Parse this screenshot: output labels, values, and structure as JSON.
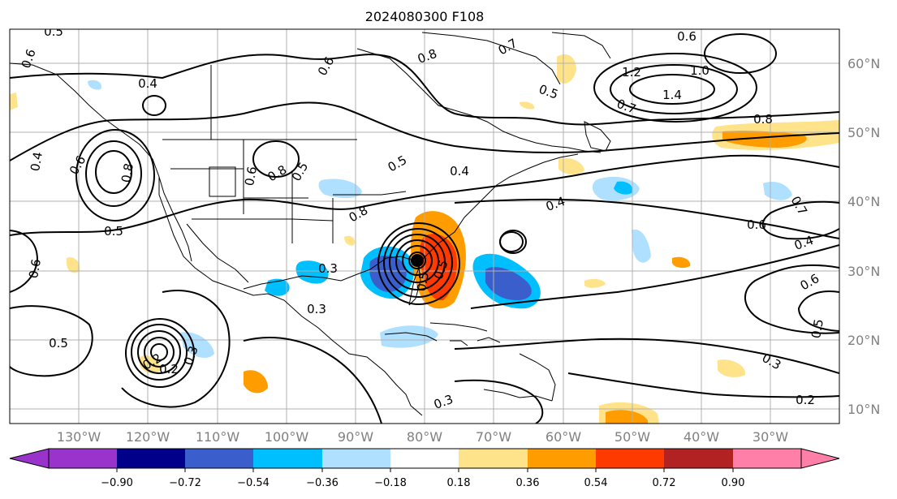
{
  "title": "2024080300 F108",
  "map": {
    "lon_labels": [
      "130°W",
      "120°W",
      "110°W",
      "100°W",
      "90°W",
      "80°W",
      "70°W",
      "60°W",
      "50°W",
      "40°W",
      "30°W"
    ],
    "lat_labels": [
      "60°N",
      "50°N",
      "40°N",
      "30°N",
      "20°N",
      "10°N"
    ],
    "contour_labels": [
      "0.5",
      "0.6",
      "0.4",
      "0.8",
      "0.6",
      "0.5",
      "0.7",
      "1.2",
      "1.0",
      "1.4",
      "0.7",
      "0.8",
      "0.6",
      "0.4",
      "0.8",
      "0.5",
      "0.6",
      "0.8",
      "0.5",
      "0.6",
      "0.8",
      "0.5",
      "0.3",
      "0.4",
      "0.4",
      "0.7",
      "0.6",
      "0.4",
      "0.6",
      "0.5",
      "0.2",
      "0.5",
      "0.3",
      "0.5",
      "0.3",
      "0.6",
      "0.5",
      "0.3",
      "0.3",
      "0.2",
      "0.2"
    ]
  },
  "colorbar": {
    "colors": [
      "#9933cc",
      "#00008b",
      "#3a5fcd",
      "#00bfff",
      "#b0e0ff",
      "#ffffff",
      "#ffe38a",
      "#ff9d00",
      "#ff3a00",
      "#b22222",
      "#ff7fa8"
    ],
    "ticks": [
      "−0.90",
      "−0.72",
      "−0.54",
      "−0.36",
      "−0.18",
      "0.18",
      "0.36",
      "0.54",
      "0.72",
      "0.90"
    ]
  }
}
